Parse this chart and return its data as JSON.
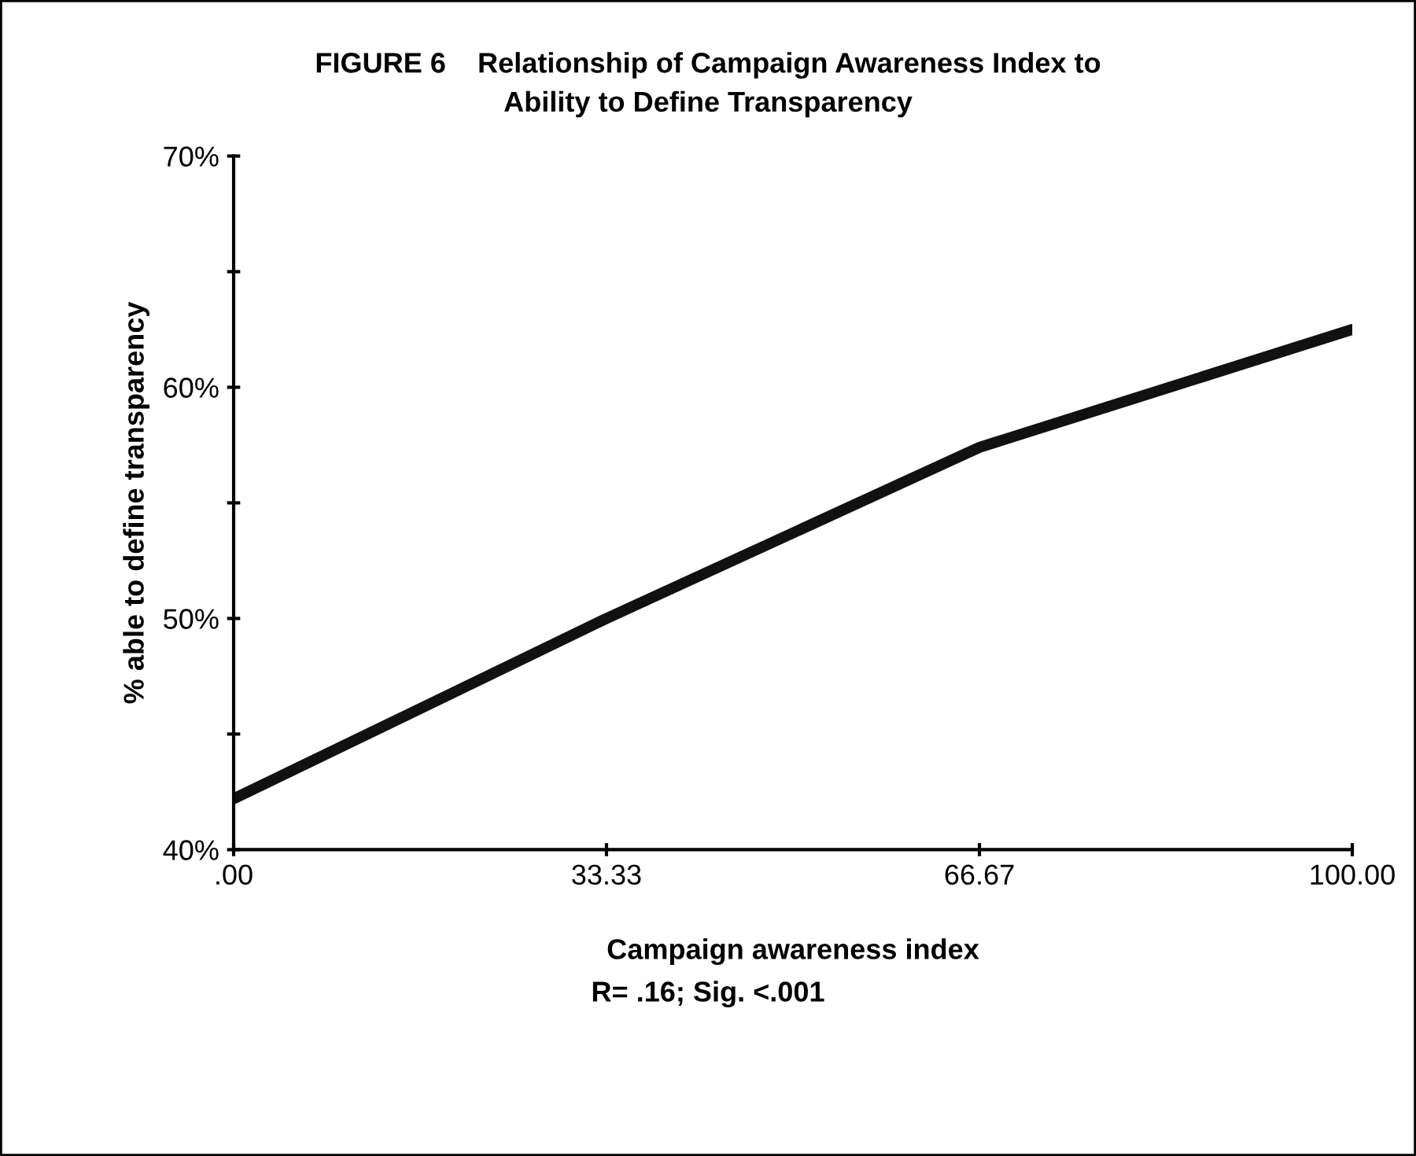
{
  "chart_data": {
    "type": "line",
    "title": "FIGURE 6    Relationship of Campaign Awareness Index to\nAbility to Define Transparency",
    "xlabel": "Campaign awareness index",
    "ylabel": "% able to define transparency",
    "annotations": [
      "R= .16; Sig. <.001"
    ],
    "x": [
      0,
      33.33,
      66.67,
      100
    ],
    "series": [
      {
        "color": "#111111",
        "values": [
          42.2,
          50,
          57.4,
          62.5
        ]
      }
    ],
    "xlim": [
      0,
      100
    ],
    "xticks": [
      {
        "value": 0,
        "label": ".00"
      },
      {
        "value": 33.33,
        "label": "33.33"
      },
      {
        "value": 66.67,
        "label": "66.67"
      },
      {
        "value": 100,
        "label": "100.00"
      }
    ],
    "ylim": [
      40,
      70
    ],
    "yticks": [
      {
        "value": 40,
        "label": "40%"
      },
      {
        "value": 45,
        "label": null
      },
      {
        "value": 50,
        "label": "50%"
      },
      {
        "value": 55,
        "label": null
      },
      {
        "value": 60,
        "label": "60%"
      },
      {
        "value": 65,
        "label": null
      },
      {
        "value": 70,
        "label": "70%"
      }
    ],
    "grid": false,
    "legend": false,
    "marker": "none",
    "line_style": "solid"
  }
}
